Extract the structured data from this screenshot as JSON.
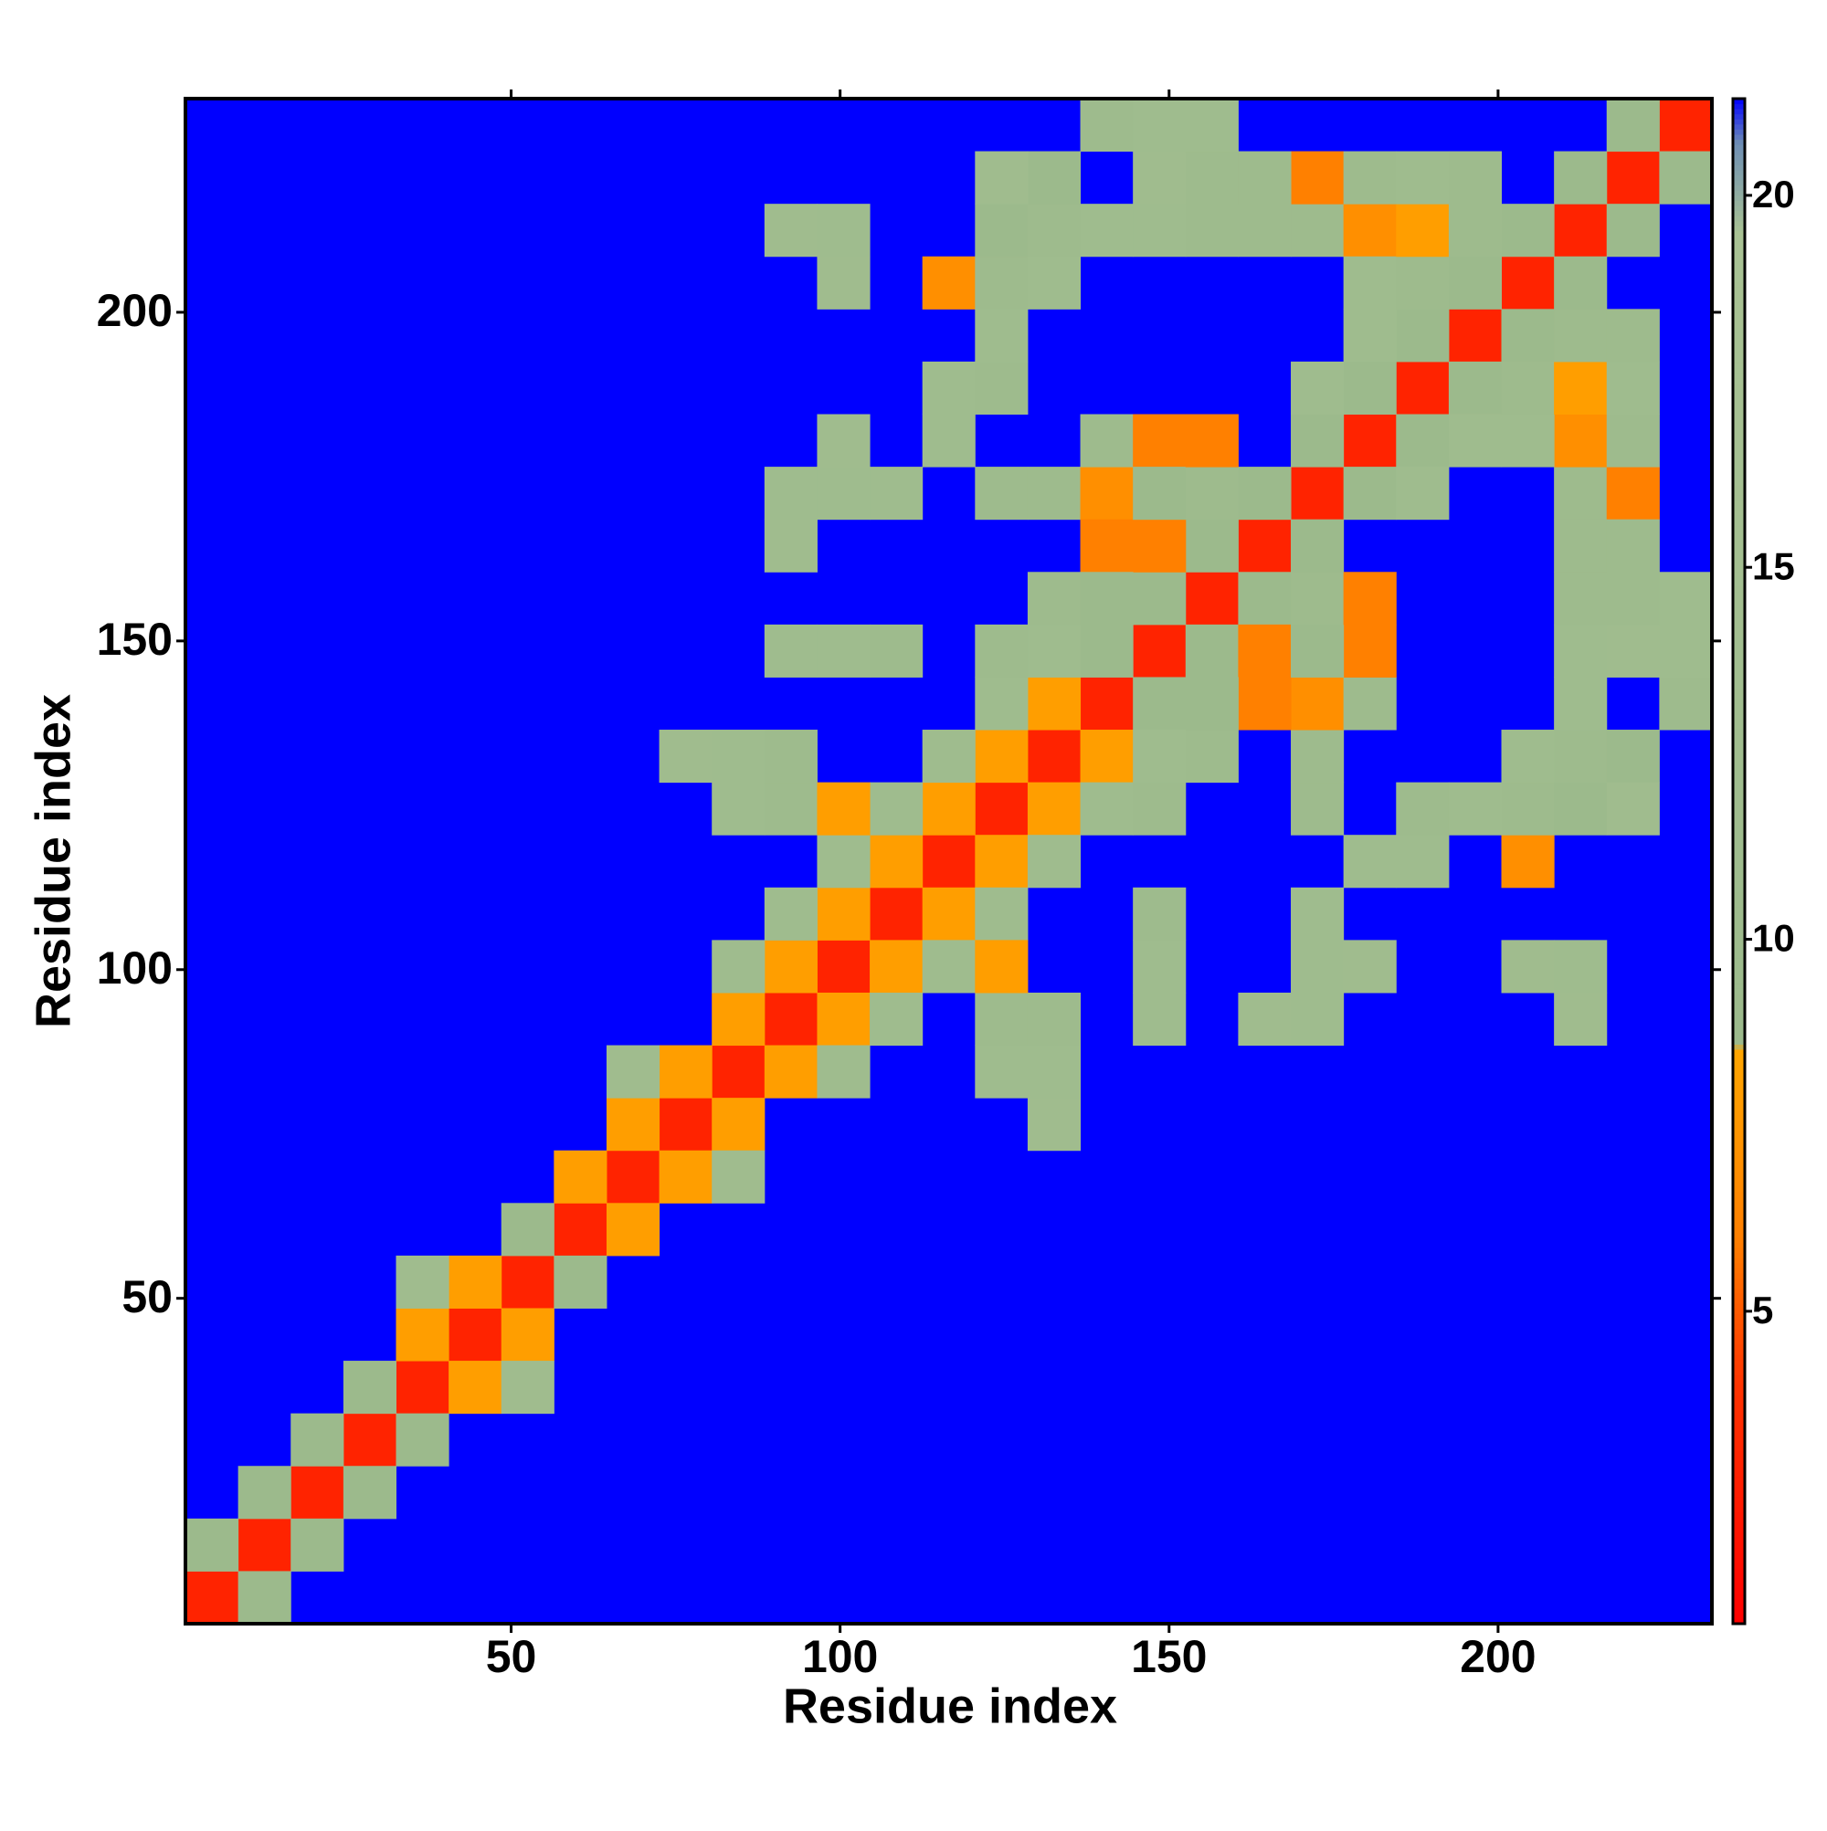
{
  "chart_data": {
    "type": "heatmap",
    "x_label": "Residue index",
    "y_label": "Residue index",
    "xlim": [
      0.5,
      232.5
    ],
    "ylim": [
      0.5,
      232.5
    ],
    "xticks": [
      50,
      100,
      150,
      200
    ],
    "yticks": [
      50,
      100,
      150,
      200
    ],
    "symmetric": true,
    "background_color": "#0000ff",
    "colorscale": [
      [
        0.8,
        "#ff0000"
      ],
      [
        4,
        "#ff3300"
      ],
      [
        6,
        "#ff8000"
      ],
      [
        8.5,
        "#ffa500"
      ],
      [
        8.6,
        "#9cba8c"
      ],
      [
        19.5,
        "#a9c294"
      ],
      [
        20.7,
        "#6f8fb4"
      ],
      [
        21.3,
        "#0000ff"
      ]
    ],
    "clim": [
      0.8,
      21.3
    ],
    "cticks": [
      5,
      10,
      15,
      20
    ],
    "cells": [
      [
        4.5,
        4.5,
        3
      ],
      [
        12.5,
        12.5,
        3
      ],
      [
        20.5,
        20.5,
        3
      ],
      [
        28.5,
        28.5,
        3
      ],
      [
        36.5,
        36.5,
        3
      ],
      [
        44.5,
        44.5,
        3
      ],
      [
        52.5,
        52.5,
        3
      ],
      [
        60.5,
        60.5,
        3
      ],
      [
        68.5,
        68.5,
        3
      ],
      [
        76.5,
        76.5,
        3
      ],
      [
        84.5,
        84.5,
        3
      ],
      [
        92.5,
        92.5,
        3
      ],
      [
        100.5,
        100.5,
        3
      ],
      [
        108.5,
        108.5,
        3
      ],
      [
        116.5,
        116.5,
        3
      ],
      [
        124.5,
        124.5,
        3
      ],
      [
        132.5,
        132.5,
        3
      ],
      [
        140.5,
        140.5,
        3
      ],
      [
        148.5,
        148.5,
        3
      ],
      [
        156.5,
        156.5,
        3
      ],
      [
        164.5,
        164.5,
        3
      ],
      [
        172.5,
        172.5,
        3
      ],
      [
        180.5,
        180.5,
        3
      ],
      [
        188.5,
        188.5,
        3
      ],
      [
        196.5,
        196.5,
        3
      ],
      [
        204.5,
        204.5,
        3
      ],
      [
        212.5,
        212.5,
        3
      ],
      [
        220.5,
        220.5,
        3
      ],
      [
        228.5,
        228.5,
        3
      ],
      [
        4.5,
        12.5,
        9
      ],
      [
        12.5,
        20.5,
        9
      ],
      [
        20.5,
        28.5,
        9
      ],
      [
        28.5,
        36.5,
        9
      ],
      [
        36.5,
        44.5,
        8
      ],
      [
        44.5,
        52.5,
        8
      ],
      [
        52.5,
        60.5,
        9
      ],
      [
        60.5,
        68.5,
        8
      ],
      [
        68.5,
        76.5,
        8
      ],
      [
        76.5,
        84.5,
        8
      ],
      [
        84.5,
        92.5,
        8
      ],
      [
        92.5,
        100.5,
        8
      ],
      [
        100.5,
        108.5,
        8
      ],
      [
        108.5,
        116.5,
        8
      ],
      [
        116.5,
        124.5,
        8
      ],
      [
        124.5,
        132.5,
        8
      ],
      [
        132.5,
        140.5,
        8
      ],
      [
        140.5,
        148.5,
        9
      ],
      [
        148.5,
        156.5,
        9
      ],
      [
        156.5,
        164.5,
        9
      ],
      [
        164.5,
        172.5,
        9
      ],
      [
        172.5,
        180.5,
        9
      ],
      [
        180.5,
        188.5,
        9
      ],
      [
        188.5,
        196.5,
        9
      ],
      [
        196.5,
        204.5,
        9
      ],
      [
        204.5,
        212.5,
        9
      ],
      [
        212.5,
        220.5,
        9
      ],
      [
        220.5,
        228.5,
        9
      ],
      [
        36.5,
        52.5,
        12
      ],
      [
        68.5,
        84.5,
        12
      ],
      [
        84.5,
        100.5,
        11
      ],
      [
        92.5,
        108.5,
        11
      ],
      [
        100.5,
        116.5,
        11
      ],
      [
        108.5,
        124.5,
        11
      ],
      [
        116.5,
        132.5,
        11
      ],
      [
        124.5,
        140.5,
        11
      ],
      [
        132.5,
        148.5,
        11
      ],
      [
        76.5,
        132.5,
        12
      ],
      [
        84.5,
        124.5,
        11
      ],
      [
        84.5,
        132.5,
        11
      ],
      [
        92.5,
        124.5,
        10
      ],
      [
        92.5,
        132.5,
        10
      ],
      [
        100.5,
        124.5,
        8
      ],
      [
        92.5,
        148.5,
        11
      ],
      [
        100.5,
        148.5,
        11
      ],
      [
        108.5,
        148.5,
        10
      ],
      [
        92.5,
        164.5,
        12
      ],
      [
        92.5,
        172.5,
        11
      ],
      [
        100.5,
        172.5,
        11
      ],
      [
        108.5,
        172.5,
        11
      ],
      [
        100.5,
        180.5,
        12
      ],
      [
        92.5,
        212.5,
        12
      ],
      [
        100.5,
        204.5,
        12
      ],
      [
        100.5,
        212.5,
        11
      ],
      [
        116.5,
        204.5,
        7
      ],
      [
        124.5,
        204.5,
        10
      ],
      [
        124.5,
        212.5,
        9
      ],
      [
        132.5,
        212.5,
        10
      ],
      [
        132.5,
        220.5,
        9
      ],
      [
        140.5,
        228.5,
        10
      ],
      [
        116.5,
        180.5,
        11
      ],
      [
        116.5,
        188.5,
        11
      ],
      [
        124.5,
        188.5,
        10
      ],
      [
        124.5,
        196.5,
        11
      ],
      [
        124.5,
        172.5,
        10
      ],
      [
        132.5,
        172.5,
        10
      ],
      [
        140.5,
        172.5,
        7
      ],
      [
        140.5,
        180.5,
        10
      ],
      [
        148.5,
        180.5,
        6
      ],
      [
        140.5,
        164.5,
        6
      ],
      [
        148.5,
        164.5,
        6
      ],
      [
        148.5,
        172.5,
        9
      ],
      [
        156.5,
        172.5,
        10
      ],
      [
        156.5,
        180.5,
        6
      ],
      [
        172.5,
        212.5,
        10
      ],
      [
        172.5,
        220.5,
        6
      ],
      [
        180.5,
        212.5,
        7
      ],
      [
        180.5,
        220.5,
        10
      ],
      [
        148.5,
        220.5,
        12
      ],
      [
        148.5,
        228.5,
        11
      ],
      [
        156.5,
        220.5,
        10
      ],
      [
        156.5,
        228.5,
        11
      ],
      [
        164.5,
        212.5,
        10
      ],
      [
        124.5,
        220.5,
        12
      ],
      [
        132.5,
        204.5,
        11
      ],
      [
        140.5,
        212.5,
        11
      ],
      [
        148.5,
        212.5,
        11
      ],
      [
        156.5,
        212.5,
        10
      ],
      [
        164.5,
        220.5,
        10
      ],
      [
        172.5,
        188.5,
        11
      ],
      [
        180.5,
        196.5,
        11
      ],
      [
        180.5,
        204.5,
        11
      ],
      [
        188.5,
        204.5,
        10
      ],
      [
        188.5,
        212.5,
        8
      ],
      [
        196.5,
        212.5,
        10
      ],
      [
        188.5,
        220.5,
        11
      ],
      [
        196.5,
        220.5,
        10
      ],
      [
        124.5,
        148.5,
        10
      ],
      [
        132.5,
        156.5,
        10
      ],
      [
        140.5,
        156.5,
        9
      ]
    ]
  }
}
